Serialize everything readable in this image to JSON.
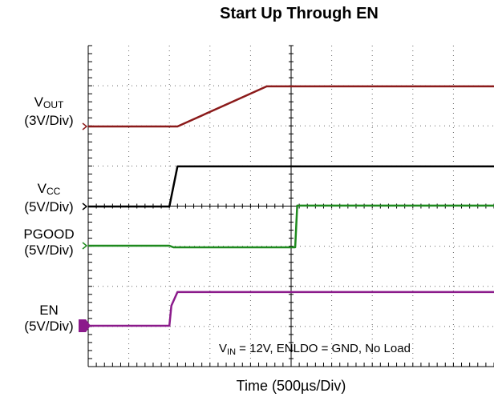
{
  "chart_data": {
    "type": "line",
    "title": "Start Up Through EN",
    "xlabel": "Time (500µs/Div)",
    "time_per_div": "500µs",
    "divisions": {
      "x": 10,
      "y": 7
    },
    "annotation": {
      "prefix": "V",
      "sub": "IN",
      "rest": " = 12V, ENLDO = GND, No Load"
    },
    "series": [
      {
        "name_main": "V",
        "name_sub": "OUT",
        "scale": "(3V/Div)",
        "color": "#8b1a1a",
        "points": [
          [
            0,
            0
          ],
          [
            2.2,
            0
          ],
          [
            4.4,
            3.0
          ],
          [
            10,
            3.0
          ]
        ],
        "unit": "V"
      },
      {
        "name_main": "V",
        "name_sub": "CC",
        "scale": "(5V/Div)",
        "color": "#000000",
        "points": [
          [
            0,
            0
          ],
          [
            2.0,
            0
          ],
          [
            2.2,
            5.0
          ],
          [
            10,
            5.0
          ]
        ],
        "unit": "V"
      },
      {
        "name_main": "PGOOD",
        "name_sub": "",
        "scale": "(5V/Div)",
        "color": "#1e8a1e",
        "points": [
          [
            0,
            0
          ],
          [
            2.0,
            0
          ],
          [
            2.1,
            -0.2
          ],
          [
            5.1,
            -0.2
          ],
          [
            5.15,
            5.0
          ],
          [
            10,
            5.0
          ]
        ],
        "unit": "V"
      },
      {
        "name_main": "EN",
        "name_sub": "",
        "scale": "(5V/Div)",
        "color": "#8b1a8b",
        "points": [
          [
            0,
            0
          ],
          [
            2.0,
            0
          ],
          [
            2.05,
            2.5
          ],
          [
            2.2,
            4.2
          ],
          [
            10,
            4.2
          ]
        ],
        "unit": "V"
      }
    ]
  }
}
